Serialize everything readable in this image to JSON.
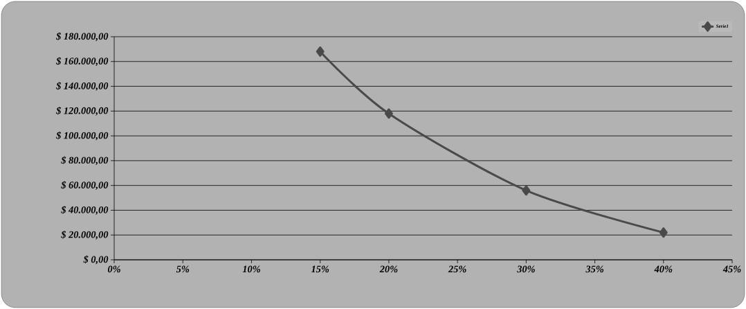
{
  "chart_data": {
    "type": "line",
    "x": [
      15,
      20,
      30,
      40
    ],
    "series": [
      {
        "name": "Serie1",
        "color": "#4a4a4a",
        "values": [
          168000,
          118000,
          56000,
          22000
        ]
      }
    ],
    "xlim": [
      0,
      45
    ],
    "xticks": [
      {
        "value": 0,
        "label": "0%"
      },
      {
        "value": 5,
        "label": "5%"
      },
      {
        "value": 10,
        "label": "10%"
      },
      {
        "value": 15,
        "label": "15%"
      },
      {
        "value": 20,
        "label": "20%"
      },
      {
        "value": 25,
        "label": "25%"
      },
      {
        "value": 30,
        "label": "30%"
      },
      {
        "value": 35,
        "label": "35%"
      },
      {
        "value": 40,
        "label": "40%"
      },
      {
        "value": 45,
        "label": "45%"
      }
    ],
    "ylim": [
      0,
      180000
    ],
    "yticks": [
      {
        "value": 0,
        "label": "$ 0,00"
      },
      {
        "value": 20000,
        "label": "$ 20.000,00"
      },
      {
        "value": 40000,
        "label": "$ 40.000,00"
      },
      {
        "value": 60000,
        "label": "$ 60.000,00"
      },
      {
        "value": 80000,
        "label": "$ 80.000,00"
      },
      {
        "value": 100000,
        "label": "$ 100.000,00"
      },
      {
        "value": 120000,
        "label": "$ 120.000,00"
      },
      {
        "value": 140000,
        "label": "$ 140.000,00"
      },
      {
        "value": 160000,
        "label": "$ 160.000,00"
      },
      {
        "value": 180000,
        "label": "$ 180.000,00"
      }
    ],
    "grid": "y",
    "legend": "top right",
    "marker": "diamond",
    "line_style": "solid"
  }
}
